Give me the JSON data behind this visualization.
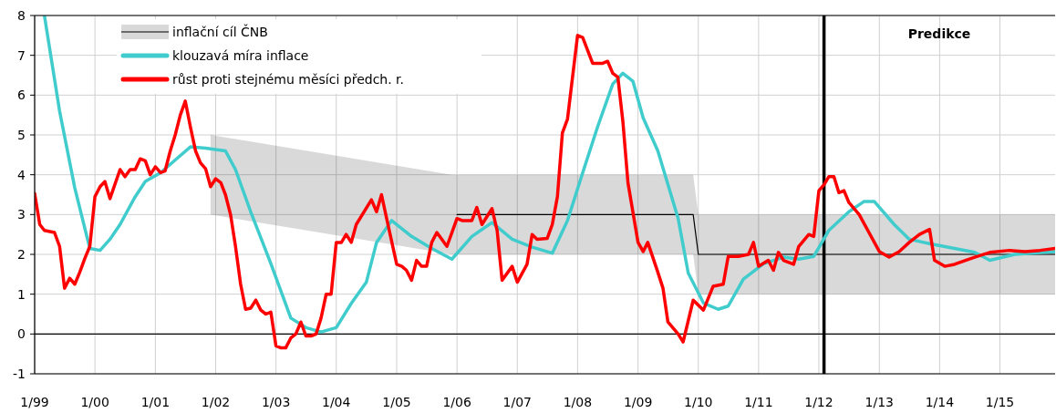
{
  "chart_data": {
    "type": "line",
    "xlim": [
      "1999-01",
      "2015-12"
    ],
    "xticks": [
      {
        "value": "1999-01",
        "label": "1/99"
      },
      {
        "value": "2000-01",
        "label": "1/00"
      },
      {
        "value": "2001-01",
        "label": "1/01"
      },
      {
        "value": "2002-01",
        "label": "1/02"
      },
      {
        "value": "2003-01",
        "label": "1/03"
      },
      {
        "value": "2004-01",
        "label": "1/04"
      },
      {
        "value": "2005-01",
        "label": "1/05"
      },
      {
        "value": "2006-01",
        "label": "1/06"
      },
      {
        "value": "2007-01",
        "label": "1/07"
      },
      {
        "value": "2008-01",
        "label": "1/08"
      },
      {
        "value": "2009-01",
        "label": "1/09"
      },
      {
        "value": "2010-01",
        "label": "1/10"
      },
      {
        "value": "2011-01",
        "label": "1/11"
      },
      {
        "value": "2012-01",
        "label": "1/12"
      },
      {
        "value": "2013-01",
        "label": "1/13"
      },
      {
        "value": "2014-01",
        "label": "1/14"
      },
      {
        "value": "2015-01",
        "label": "1/15"
      }
    ],
    "ylim": [
      -1,
      8
    ],
    "yticks": [
      -1,
      0,
      1,
      2,
      3,
      4,
      5,
      6,
      7,
      8
    ],
    "grid": true,
    "legend": "top left",
    "ref_lines": [
      {
        "axis": "y",
        "value": 0,
        "color": "#000000"
      },
      {
        "axis": "x",
        "value": "2012-02",
        "color": "#000000"
      }
    ],
    "annotations": [
      "Predikce"
    ],
    "series": [
      {
        "name": "inflační cíl ČNB",
        "type": "line",
        "color": "#000000",
        "x": [
          "2001-12",
          "2005-12",
          "2006-01",
          "2009-12",
          "2010-01",
          "2015-12"
        ],
        "values": [
          null,
          null,
          3,
          3,
          2,
          2
        ],
        "lower": [
          3,
          2,
          2,
          2,
          1,
          1
        ],
        "upper": [
          5,
          4,
          4,
          4,
          3,
          3
        ]
      },
      {
        "name": "klouzavá míra inflace",
        "color": "#40cccc",
        "x": [
          "1999-03",
          "1999-06",
          "1999-09",
          "1999-12",
          "2000-02",
          "2000-04",
          "2000-06",
          "2000-09",
          "2000-11",
          "2001-02",
          "2001-05",
          "2001-08",
          "2001-11",
          "2002-03",
          "2002-05",
          "2002-08",
          "2002-12",
          "2003-04",
          "2003-07",
          "2003-10",
          "2004-01",
          "2004-04",
          "2004-07",
          "2004-09",
          "2004-12",
          "2005-04",
          "2005-08",
          "2005-12",
          "2006-04",
          "2006-08",
          "2006-12",
          "2007-04",
          "2007-08",
          "2007-11",
          "2008-02",
          "2008-05",
          "2008-08",
          "2008-10",
          "2008-12",
          "2009-02",
          "2009-05",
          "2009-09",
          "2009-11",
          "2010-02",
          "2010-05",
          "2010-07",
          "2010-10",
          "2011-02",
          "2011-06",
          "2011-09",
          "2011-12",
          "2012-03",
          "2012-07",
          "2012-10",
          "2012-12",
          "2013-04",
          "2013-07",
          "2013-11",
          "2014-04",
          "2014-08",
          "2014-11",
          "2015-04",
          "2015-12"
        ],
        "values": [
          8,
          5.6,
          3.67,
          2.15,
          2.1,
          2.38,
          2.75,
          3.45,
          3.83,
          4.05,
          4.37,
          4.7,
          4.67,
          4.6,
          4.13,
          3.07,
          1.77,
          0.4,
          0.16,
          0.05,
          0.16,
          0.77,
          1.3,
          2.3,
          2.85,
          2.45,
          2.15,
          1.88,
          2.45,
          2.8,
          2.38,
          2.18,
          2.03,
          2.85,
          4.05,
          5.2,
          6.28,
          6.55,
          6.35,
          5.43,
          4.6,
          2.9,
          1.53,
          0.78,
          0.62,
          0.7,
          1.38,
          1.77,
          1.93,
          1.88,
          1.95,
          2.6,
          3.07,
          3.33,
          3.33,
          2.75,
          2.38,
          2.27,
          2.15,
          2.05,
          1.85,
          2,
          2.07
        ]
      },
      {
        "name": "růst proti stejnému měsíci předch. r.",
        "color": "#ff0000",
        "x": [
          "1999-01",
          "1999-02",
          "1999-03",
          "1999-05",
          "1999-06",
          "1999-07",
          "1999-08",
          "1999-09",
          "1999-10",
          "1999-11",
          "1999-12",
          "2000-01",
          "2000-02",
          "2000-03",
          "2000-04",
          "2000-06",
          "2000-07",
          "2000-08",
          "2000-09",
          "2000-10",
          "2000-11",
          "2000-12",
          "2001-01",
          "2001-02",
          "2001-03",
          "2001-04",
          "2001-05",
          "2001-06",
          "2001-07",
          "2001-08",
          "2001-09",
          "2001-10",
          "2001-11",
          "2001-12",
          "2002-01",
          "2002-02",
          "2002-03",
          "2002-04",
          "2002-05",
          "2002-06",
          "2002-07",
          "2002-08",
          "2002-09",
          "2002-10",
          "2002-11",
          "2002-12",
          "2003-01",
          "2003-02",
          "2003-03",
          "2003-04",
          "2003-05",
          "2003-06",
          "2003-07",
          "2003-08",
          "2003-09",
          "2003-10",
          "2003-11",
          "2003-12",
          "2004-01",
          "2004-02",
          "2004-03",
          "2004-04",
          "2004-05",
          "2004-08",
          "2004-09",
          "2004-10",
          "2004-11",
          "2005-01",
          "2005-02",
          "2005-03",
          "2005-04",
          "2005-05",
          "2005-06",
          "2005-07",
          "2005-08",
          "2005-09",
          "2005-11",
          "2006-01",
          "2006-02",
          "2006-04",
          "2006-05",
          "2006-06",
          "2006-08",
          "2006-09",
          "2006-10",
          "2006-12",
          "2007-01",
          "2007-03",
          "2007-04",
          "2007-05",
          "2007-07",
          "2007-08",
          "2007-09",
          "2007-10",
          "2007-11",
          "2008-01",
          "2008-02",
          "2008-04",
          "2008-06",
          "2008-07",
          "2008-08",
          "2008-09",
          "2008-10",
          "2008-11",
          "2009-01",
          "2009-02",
          "2009-03",
          "2009-05",
          "2009-06",
          "2009-07",
          "2009-09",
          "2009-10",
          "2009-12",
          "2010-02",
          "2010-04",
          "2010-06",
          "2010-07",
          "2010-09",
          "2010-11",
          "2010-12",
          "2011-01",
          "2011-03",
          "2011-04",
          "2011-05",
          "2011-06",
          "2011-08",
          "2011-09",
          "2011-11",
          "2011-12",
          "2012-01",
          "2012-02",
          "2012-03",
          "2012-04",
          "2012-05",
          "2012-06",
          "2012-07",
          "2012-09",
          "2013-01",
          "2013-03",
          "2013-05",
          "2013-07",
          "2013-09",
          "2013-11",
          "2013-12",
          "2014-02",
          "2014-04",
          "2014-08",
          "2014-11",
          "2015-03",
          "2015-06",
          "2015-09",
          "2015-12"
        ],
        "values": [
          3.53,
          2.75,
          2.6,
          2.55,
          2.2,
          1.15,
          1.4,
          1.25,
          1.55,
          1.9,
          2.2,
          3.45,
          3.7,
          3.83,
          3.4,
          4.13,
          3.95,
          4.13,
          4.13,
          4.4,
          4.35,
          4,
          4.2,
          4.05,
          4.1,
          4.6,
          5,
          5.5,
          5.85,
          5.2,
          4.6,
          4.3,
          4.15,
          3.7,
          3.9,
          3.8,
          3.5,
          3,
          2.2,
          1.25,
          0.62,
          0.65,
          0.85,
          0.6,
          0.5,
          0.55,
          -0.3,
          -0.35,
          -0.35,
          -0.1,
          0,
          0.3,
          -0.05,
          -0.05,
          0,
          0.4,
          1,
          1,
          2.3,
          2.3,
          2.5,
          2.3,
          2.75,
          3.37,
          3.07,
          3.5,
          2.9,
          1.75,
          1.7,
          1.6,
          1.35,
          1.85,
          1.7,
          1.7,
          2.3,
          2.55,
          2.2,
          2.9,
          2.85,
          2.85,
          3.18,
          2.75,
          3.15,
          2.6,
          1.35,
          1.7,
          1.3,
          1.75,
          2.5,
          2.38,
          2.4,
          2.75,
          3.45,
          5.05,
          5.4,
          7.5,
          7.45,
          6.8,
          6.8,
          6.85,
          6.55,
          6.45,
          5.35,
          3.8,
          2.3,
          2.07,
          2.3,
          1.55,
          1.15,
          0.3,
          0,
          -0.2,
          0.85,
          0.6,
          1.2,
          1.25,
          1.95,
          1.95,
          2,
          2.3,
          1.7,
          1.85,
          1.6,
          2.05,
          1.85,
          1.75,
          2.2,
          2.5,
          2.45,
          3.6,
          3.75,
          3.95,
          3.95,
          3.55,
          3.6,
          3.3,
          3,
          2.07,
          1.93,
          2.07,
          2.3,
          2.5,
          2.63,
          1.85,
          1.7,
          1.75,
          1.93,
          2.05,
          2.1,
          2.07,
          2.1,
          2.15
        ]
      }
    ]
  }
}
